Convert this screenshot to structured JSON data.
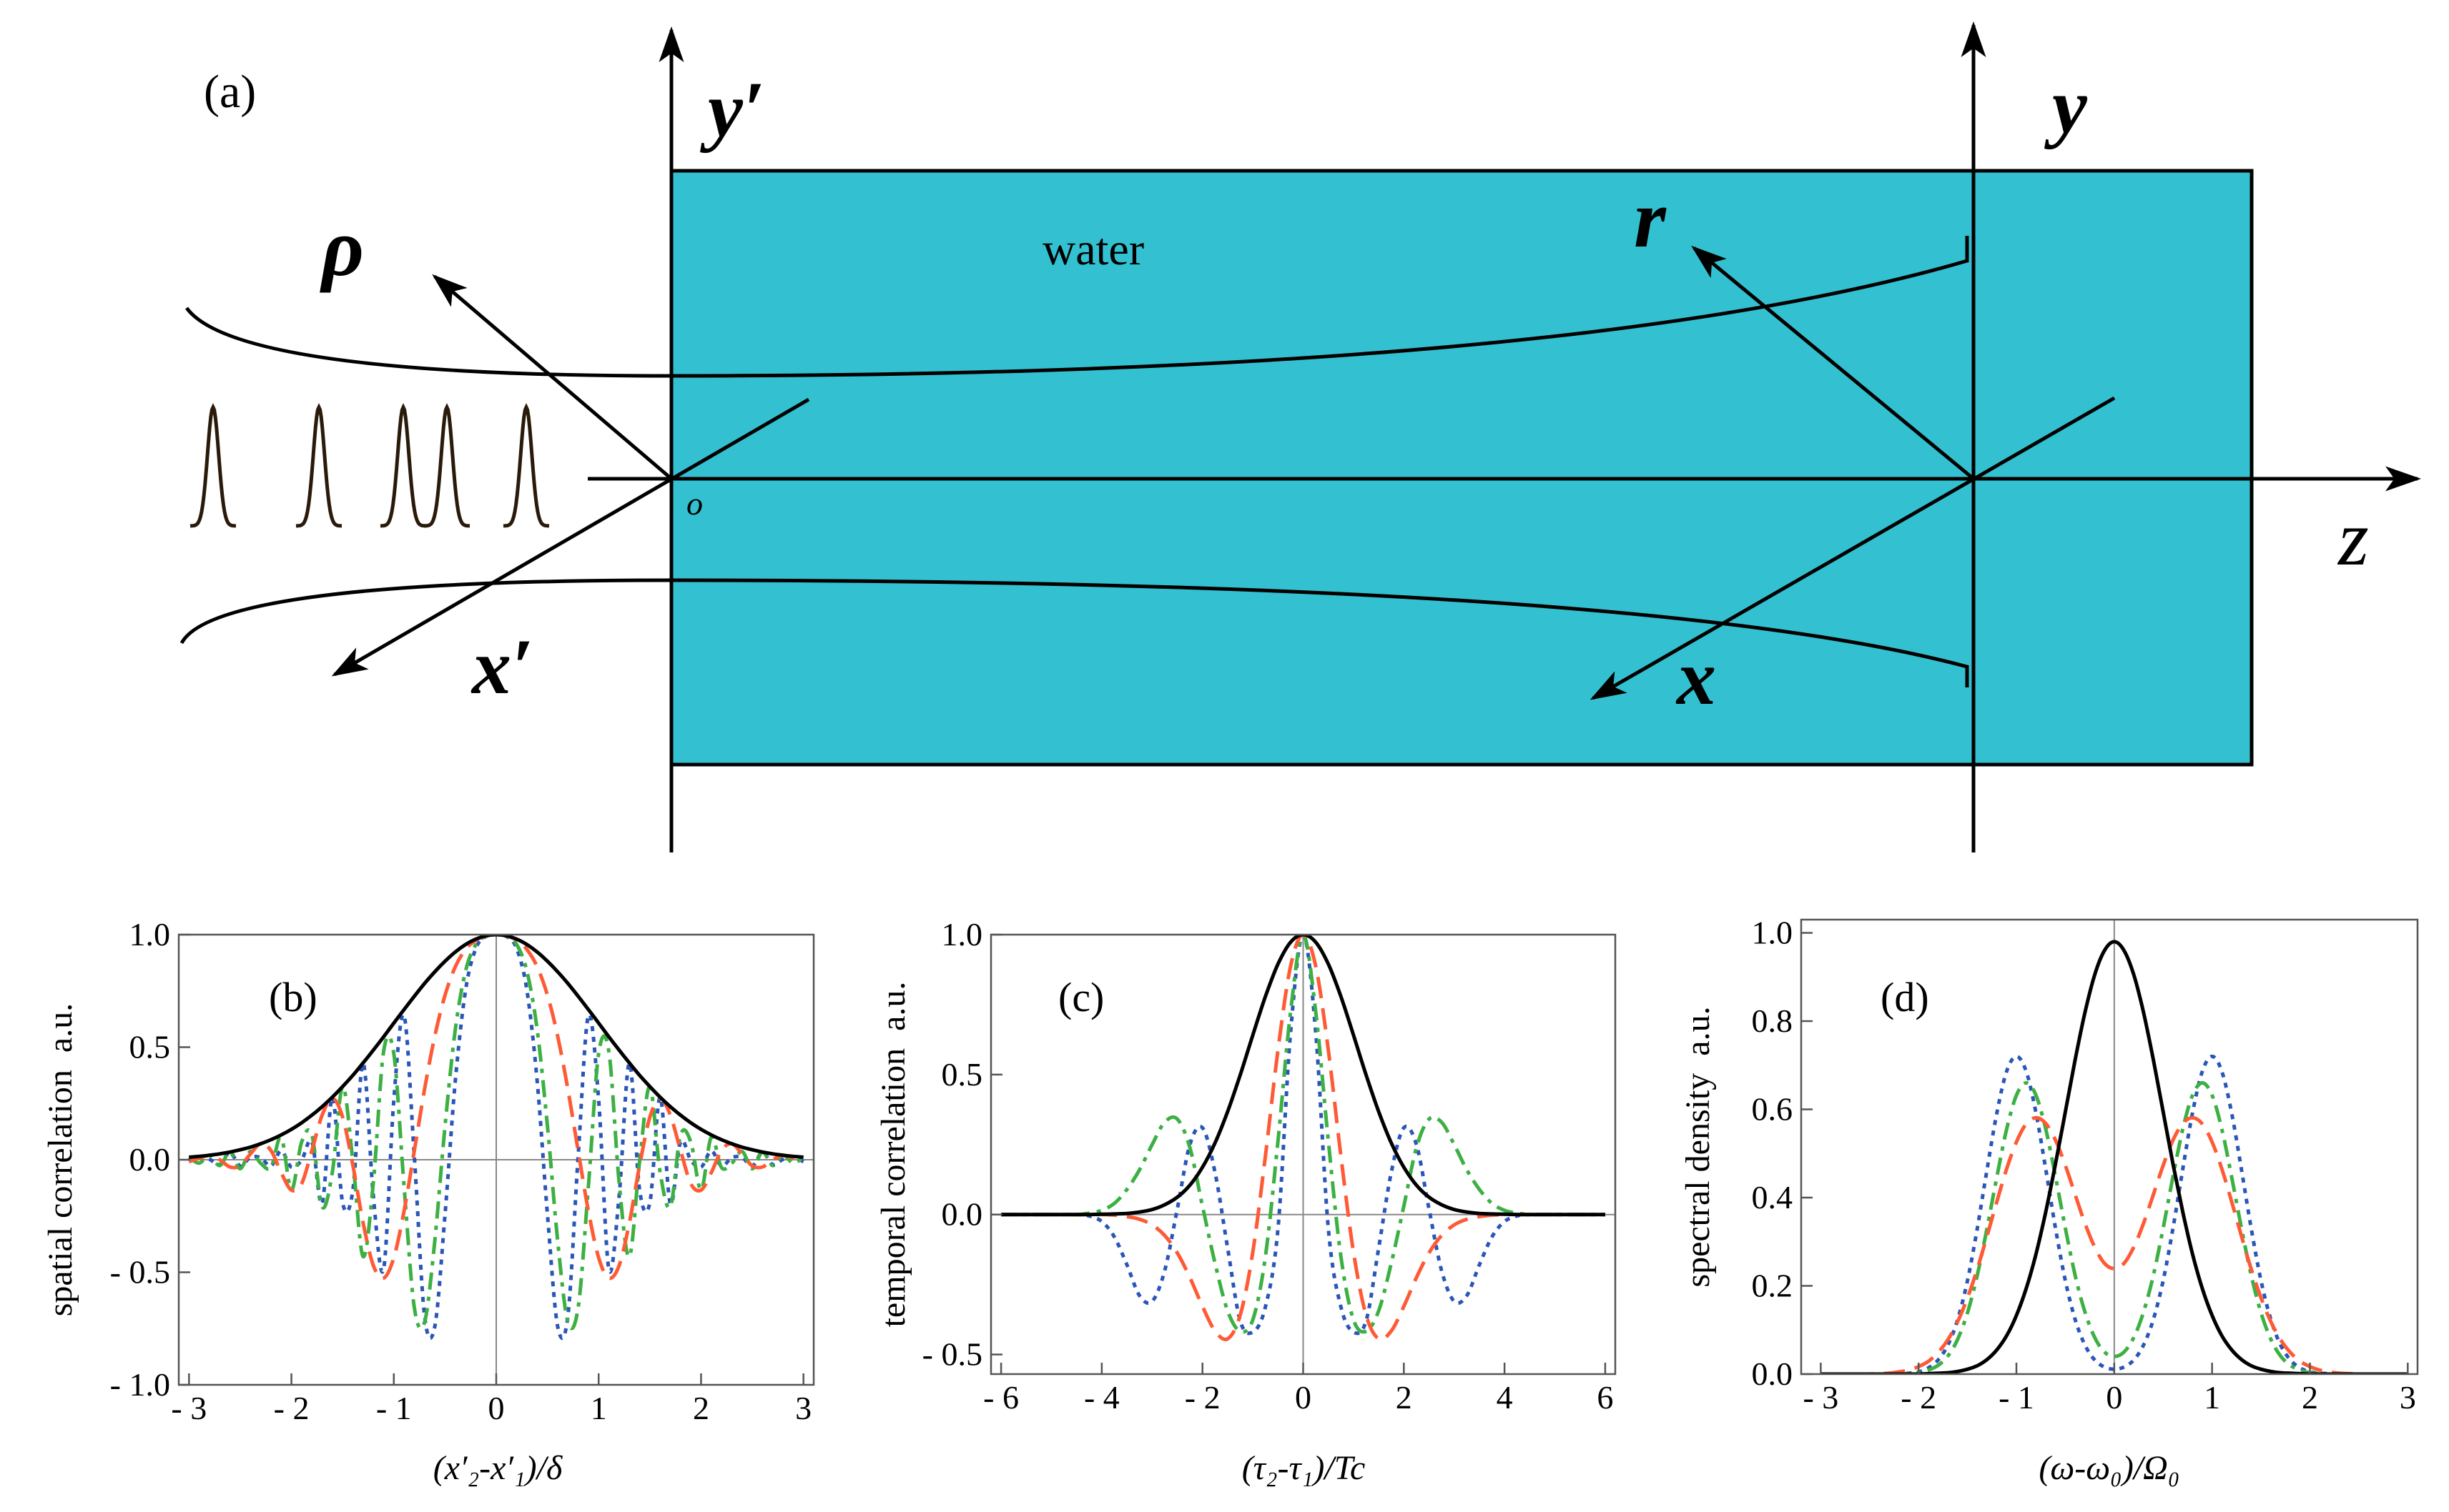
{
  "diagram": {
    "panel_label": "(a)",
    "axis_y_prime": "y′",
    "axis_y": "y",
    "axis_z": "z",
    "axis_x_prime": "x′",
    "axis_x": "x",
    "vector_rho": "ρ",
    "vector_r": "r",
    "origin": "o",
    "medium": "water"
  },
  "chart_data": [
    {
      "type": "line",
      "panel_label": "(b)",
      "x_label": "(x′₂-x′₁)/δ",
      "y_label": "spatial correlation  a.u.",
      "xlim": [
        -3.1,
        3.1
      ],
      "ylim": [
        -1,
        1
      ],
      "xticks": [
        {
          "value": -3,
          "label": "- 3"
        },
        {
          "value": -2,
          "label": "- 2"
        },
        {
          "value": -1,
          "label": "- 1"
        },
        0,
        1,
        2,
        3
      ],
      "yticks": [
        {
          "value": -1,
          "label": "- 1.0"
        },
        {
          "value": -0.5,
          "label": "- 0.5"
        },
        {
          "value": 0,
          "label": "0.0"
        },
        {
          "value": 0.5,
          "label": "0.5"
        },
        {
          "value": 1,
          "label": "1.0"
        }
      ],
      "x": [
        -3,
        -2.9,
        -2.8,
        -2.7,
        -2.6,
        -2.5,
        -2.4,
        -2.3,
        -2.2,
        -2.1,
        -2,
        -1.9,
        -1.8,
        -1.7,
        -1.6,
        -1.5,
        -1.4,
        -1.3,
        -1.2,
        -1.1,
        -1,
        -0.9,
        -0.8,
        -0.7,
        -0.6,
        -0.5,
        -0.4,
        -0.3,
        -0.2,
        -0.1,
        0,
        0.1,
        0.2,
        0.3,
        0.4,
        0.5,
        0.6,
        0.7,
        0.8,
        0.9,
        1,
        1.1,
        1.2,
        1.3,
        1.4,
        1.5,
        1.6,
        1.7,
        1.8,
        1.9,
        2,
        2.1,
        2.2,
        2.3,
        2.4,
        2.5,
        2.6,
        2.7,
        2.8,
        2.9,
        3
      ],
      "series": [
        {
          "color": "#2a56b8",
          "dash": "dot",
          "values": [
            -0.009,
            0.012,
            0.002,
            -0.022,
            0.033,
            -0.028,
            0.011,
            0.009,
            -0.028,
            0.039,
            -0.033,
            -0.002,
            0.08,
            -0.194,
            0.277,
            -0.192,
            -0.135,
            0.429,
            -0.161,
            -0.486,
            0.266,
            0.64,
            0.017,
            -0.692,
            -0.741,
            -0.243,
            0.348,
            0.751,
            0.938,
            0.992,
            1,
            0.992,
            0.938,
            0.751,
            0.348,
            -0.243,
            -0.741,
            -0.692,
            0.017,
            0.64,
            0.266,
            -0.486,
            -0.161,
            0.429,
            -0.135,
            -0.192,
            0.277,
            -0.194,
            0.08,
            -0.002,
            -0.033,
            0.039,
            -0.028,
            0.009,
            0.011,
            -0.028,
            0.033,
            -0.022,
            0.002,
            0.012,
            -0.009
          ]
        },
        {
          "color": "#3cb043",
          "dash": "dashdot",
          "values": [
            0.011,
            -0.015,
            0.02,
            -0.026,
            0.034,
            -0.04,
            0.037,
            -0.016,
            -0.035,
            0.1,
            -0.134,
            0.079,
            0.11,
            -0.209,
            -0.055,
            0.325,
            -0.007,
            -0.43,
            -0.102,
            0.481,
            0.471,
            -0.118,
            -0.656,
            -0.722,
            -0.36,
            0.15,
            0.577,
            0.837,
            0.956,
            0.993,
            1,
            0.993,
            0.956,
            0.837,
            0.577,
            0.15,
            -0.36,
            -0.722,
            -0.656,
            -0.118,
            0.471,
            0.481,
            -0.102,
            -0.43,
            -0.007,
            0.325,
            -0.055,
            -0.209,
            0.11,
            0.079,
            -0.134,
            0.1,
            -0.035,
            -0.016,
            0.037,
            -0.04,
            0.034,
            -0.026,
            0.02,
            -0.015,
            0.011
          ]
        },
        {
          "color": "#ff5a36",
          "dash": "long",
          "values": [
            -0.009,
            0.007,
            0.019,
            0,
            -0.032,
            -0.027,
            0.026,
            0.071,
            0.041,
            -0.057,
            -0.135,
            -0.106,
            0.041,
            0.198,
            0.273,
            0.189,
            -0.025,
            -0.28,
            -0.47,
            -0.526,
            -0.435,
            -0.228,
            0.039,
            0.312,
            0.549,
            0.731,
            0.857,
            0.934,
            0.975,
            0.995,
            1,
            0.995,
            0.975,
            0.934,
            0.857,
            0.731,
            0.549,
            0.312,
            0.039,
            -0.228,
            -0.435,
            -0.526,
            -0.47,
            -0.28,
            -0.025,
            0.189,
            0.273,
            0.198,
            0.041,
            -0.106,
            -0.135,
            -0.057,
            0.041,
            0.071,
            0.026,
            -0.027,
            -0.032,
            0,
            0.019,
            0.007,
            -0.009
          ]
        },
        {
          "color": "#000000",
          "dash": "solid",
          "values": [
            0.011,
            0.015,
            0.02,
            0.026,
            0.034,
            0.044,
            0.056,
            0.071,
            0.089,
            0.11,
            0.135,
            0.164,
            0.198,
            0.236,
            0.278,
            0.325,
            0.375,
            0.43,
            0.487,
            0.546,
            0.607,
            0.667,
            0.726,
            0.783,
            0.835,
            0.882,
            0.923,
            0.956,
            0.98,
            0.995,
            1,
            0.995,
            0.98,
            0.956,
            0.923,
            0.882,
            0.835,
            0.783,
            0.726,
            0.667,
            0.607,
            0.546,
            0.487,
            0.43,
            0.375,
            0.325,
            0.278,
            0.236,
            0.198,
            0.164,
            0.135,
            0.11,
            0.089,
            0.071,
            0.056,
            0.044,
            0.034,
            0.026,
            0.02,
            0.015,
            0.011
          ]
        }
      ]
    },
    {
      "type": "line",
      "panel_label": "(c)",
      "x_label": "(τ₂-τ₁)/Tc",
      "y_label": "temporal correlation  a.u.",
      "xlim": [
        -6.2,
        6.2
      ],
      "ylim": [
        -0.57,
        1
      ],
      "xticks": [
        {
          "value": -6,
          "label": "- 6"
        },
        {
          "value": -4,
          "label": "- 4"
        },
        {
          "value": -2,
          "label": "- 2"
        },
        0,
        2,
        4,
        6
      ],
      "yticks": [
        {
          "value": -0.5,
          "label": "- 0.5"
        },
        {
          "value": 0,
          "label": "0.0"
        },
        {
          "value": 0.5,
          "label": "0.5"
        },
        {
          "value": 1,
          "label": "1.0"
        }
      ],
      "x": [
        -6,
        -5.75,
        -5.5,
        -5.25,
        -5,
        -4.75,
        -4.5,
        -4.25,
        -4,
        -3.75,
        -3.5,
        -3.25,
        -3,
        -2.75,
        -2.5,
        -2.25,
        -2,
        -1.75,
        -1.5,
        -1.25,
        -1,
        -0.75,
        -0.5,
        -0.25,
        0,
        0.25,
        0.5,
        0.75,
        1,
        1.25,
        1.5,
        1.75,
        2,
        2.25,
        2.5,
        2.75,
        3,
        3.25,
        3.5,
        3.75,
        4,
        4.25,
        4.5,
        4.75,
        5,
        5.25,
        5.5,
        5.75,
        6
      ],
      "series": [
        {
          "color": "#2a56b8",
          "dash": "dot",
          "values": [
            0,
            0,
            0,
            0,
            0,
            0,
            0,
            -0.005,
            -0.025,
            -0.08,
            -0.18,
            -0.29,
            -0.31,
            -0.2,
            0.02,
            0.25,
            0.31,
            0.15,
            -0.12,
            -0.38,
            -0.42,
            -0.33,
            -0.05,
            0.65,
            1,
            0.65,
            -0.05,
            -0.33,
            -0.42,
            -0.38,
            -0.12,
            0.15,
            0.31,
            0.25,
            0.02,
            -0.2,
            -0.31,
            -0.29,
            -0.18,
            -0.08,
            -0.025,
            -0.005,
            0,
            0,
            0,
            0,
            0,
            0,
            0
          ]
        },
        {
          "color": "#3cb043",
          "dash": "dashdot",
          "values": [
            0,
            0,
            0,
            0,
            0,
            0,
            0,
            0.005,
            0.015,
            0.04,
            0.09,
            0.16,
            0.25,
            0.33,
            0.341,
            0.239,
            0.03,
            -0.174,
            -0.344,
            -0.417,
            -0.376,
            -0.15,
            0.263,
            0.724,
            1,
            0.724,
            0.263,
            -0.15,
            -0.376,
            -0.417,
            -0.344,
            -0.174,
            0.03,
            0.239,
            0.341,
            0.33,
            0.25,
            0.16,
            0.09,
            0.04,
            0.015,
            0.005,
            0,
            0,
            0,
            0,
            0,
            0,
            0
          ]
        },
        {
          "color": "#ff5a36",
          "dash": "long",
          "values": [
            0,
            0,
            0,
            0,
            0,
            0,
            0,
            0,
            0,
            -0.002,
            -0.007,
            -0.017,
            -0.037,
            -0.075,
            -0.137,
            -0.225,
            -0.328,
            -0.416,
            -0.444,
            -0.359,
            -0.134,
            0.209,
            0.588,
            0.887,
            1,
            0.887,
            0.588,
            0.209,
            -0.134,
            -0.359,
            -0.444,
            -0.416,
            -0.328,
            -0.225,
            -0.137,
            -0.075,
            -0.037,
            -0.017,
            -0.007,
            -0.002,
            0,
            0,
            0,
            0,
            0,
            0,
            0,
            0,
            0
          ]
        },
        {
          "color": "#000000",
          "dash": "solid",
          "values": [
            0,
            0,
            0,
            0,
            0,
            0,
            0,
            0,
            0.001,
            0.002,
            0.004,
            0.009,
            0.018,
            0.035,
            0.062,
            0.105,
            0.169,
            0.256,
            0.368,
            0.499,
            0.641,
            0.779,
            0.895,
            0.973,
            1,
            0.973,
            0.895,
            0.779,
            0.641,
            0.499,
            0.368,
            0.256,
            0.169,
            0.105,
            0.062,
            0.035,
            0.018,
            0.009,
            0.004,
            0.002,
            0.001,
            0,
            0,
            0,
            0,
            0,
            0,
            0,
            0
          ]
        }
      ]
    },
    {
      "type": "line",
      "panel_label": "(d)",
      "x_label": "(ω-ω₀)/Ω₀",
      "y_label": "spectral density  a.u.",
      "xlim": [
        -3.2,
        3.1
      ],
      "ylim": [
        0,
        1.03
      ],
      "xticks": [
        {
          "value": -3,
          "label": "- 3"
        },
        {
          "value": -2,
          "label": "- 2"
        },
        {
          "value": -1,
          "label": "- 1"
        },
        0,
        1,
        2,
        3
      ],
      "yticks": [
        {
          "value": 0,
          "label": "0.0"
        },
        0.2,
        0.4,
        0.6,
        0.8,
        {
          "value": 1,
          "label": "1.0"
        }
      ],
      "x": [
        -3,
        -2.9,
        -2.8,
        -2.7,
        -2.6,
        -2.5,
        -2.4,
        -2.3,
        -2.2,
        -2.1,
        -2,
        -1.9,
        -1.8,
        -1.7,
        -1.6,
        -1.5,
        -1.4,
        -1.3,
        -1.2,
        -1.1,
        -1,
        -0.9,
        -0.8,
        -0.7,
        -0.6,
        -0.5,
        -0.4,
        -0.3,
        -0.2,
        -0.1,
        0,
        0.1,
        0.2,
        0.3,
        0.4,
        0.5,
        0.6,
        0.7,
        0.8,
        0.9,
        1,
        1.1,
        1.2,
        1.3,
        1.4,
        1.5,
        1.6,
        1.7,
        1.8,
        1.9,
        2,
        2.1,
        2.2,
        2.3,
        2.4,
        2.5,
        2.6,
        2.7,
        2.8,
        2.9,
        3
      ],
      "series": [
        {
          "color": "#2a56b8",
          "dash": "dot",
          "values": [
            0,
            0,
            0,
            0,
            0,
            0,
            0,
            0,
            0.001,
            0.002,
            0.005,
            0.014,
            0.032,
            0.066,
            0.124,
            0.212,
            0.33,
            0.464,
            0.592,
            0.686,
            0.72,
            0.686,
            0.592,
            0.464,
            0.33,
            0.212,
            0.124,
            0.066,
            0.032,
            0.016,
            0.011,
            0.016,
            0.032,
            0.066,
            0.124,
            0.212,
            0.33,
            0.464,
            0.592,
            0.686,
            0.72,
            0.686,
            0.592,
            0.464,
            0.33,
            0.212,
            0.124,
            0.066,
            0.032,
            0.014,
            0.005,
            0.002,
            0.001,
            0,
            0,
            0,
            0,
            0,
            0,
            0,
            0
          ]
        },
        {
          "color": "#3cb043",
          "dash": "dashdot",
          "values": [
            0,
            0,
            0,
            0,
            0,
            0,
            0,
            0,
            0,
            0.001,
            0.003,
            0.009,
            0.02,
            0.041,
            0.079,
            0.139,
            0.224,
            0.331,
            0.447,
            0.555,
            0.632,
            0.66,
            0.632,
            0.555,
            0.447,
            0.331,
            0.224,
            0.141,
            0.083,
            0.05,
            0.04,
            0.05,
            0.083,
            0.141,
            0.224,
            0.331,
            0.447,
            0.555,
            0.632,
            0.66,
            0.632,
            0.555,
            0.447,
            0.331,
            0.224,
            0.139,
            0.079,
            0.041,
            0.02,
            0.009,
            0.003,
            0.001,
            0,
            0,
            0,
            0,
            0,
            0,
            0,
            0,
            0
          ]
        },
        {
          "color": "#ff5a36",
          "dash": "long",
          "values": [
            0,
            0,
            0,
            0,
            0,
            0,
            0.001,
            0.002,
            0.005,
            0.009,
            0.017,
            0.029,
            0.049,
            0.078,
            0.119,
            0.173,
            0.238,
            0.313,
            0.391,
            0.465,
            0.526,
            0.567,
            0.581,
            0.568,
            0.53,
            0.473,
            0.407,
            0.342,
            0.288,
            0.251,
            0.239,
            0.251,
            0.288,
            0.342,
            0.407,
            0.473,
            0.53,
            0.568,
            0.581,
            0.567,
            0.526,
            0.465,
            0.391,
            0.313,
            0.238,
            0.173,
            0.119,
            0.078,
            0.049,
            0.029,
            0.017,
            0.009,
            0.005,
            0.002,
            0.001,
            0,
            0,
            0,
            0,
            0,
            0
          ]
        },
        {
          "color": "#000000",
          "dash": "solid",
          "values": [
            0,
            0,
            0,
            0,
            0,
            0,
            0,
            0,
            0,
            0,
            0,
            0.001,
            0.002,
            0.003,
            0.006,
            0.011,
            0.019,
            0.033,
            0.055,
            0.087,
            0.133,
            0.194,
            0.272,
            0.368,
            0.477,
            0.594,
            0.712,
            0.819,
            0.905,
            0.96,
            0.98,
            0.96,
            0.905,
            0.819,
            0.712,
            0.594,
            0.477,
            0.368,
            0.272,
            0.194,
            0.133,
            0.087,
            0.055,
            0.033,
            0.019,
            0.011,
            0.006,
            0.003,
            0.002,
            0.001,
            0,
            0,
            0,
            0,
            0,
            0,
            0,
            0,
            0,
            0,
            0
          ]
        }
      ]
    }
  ]
}
